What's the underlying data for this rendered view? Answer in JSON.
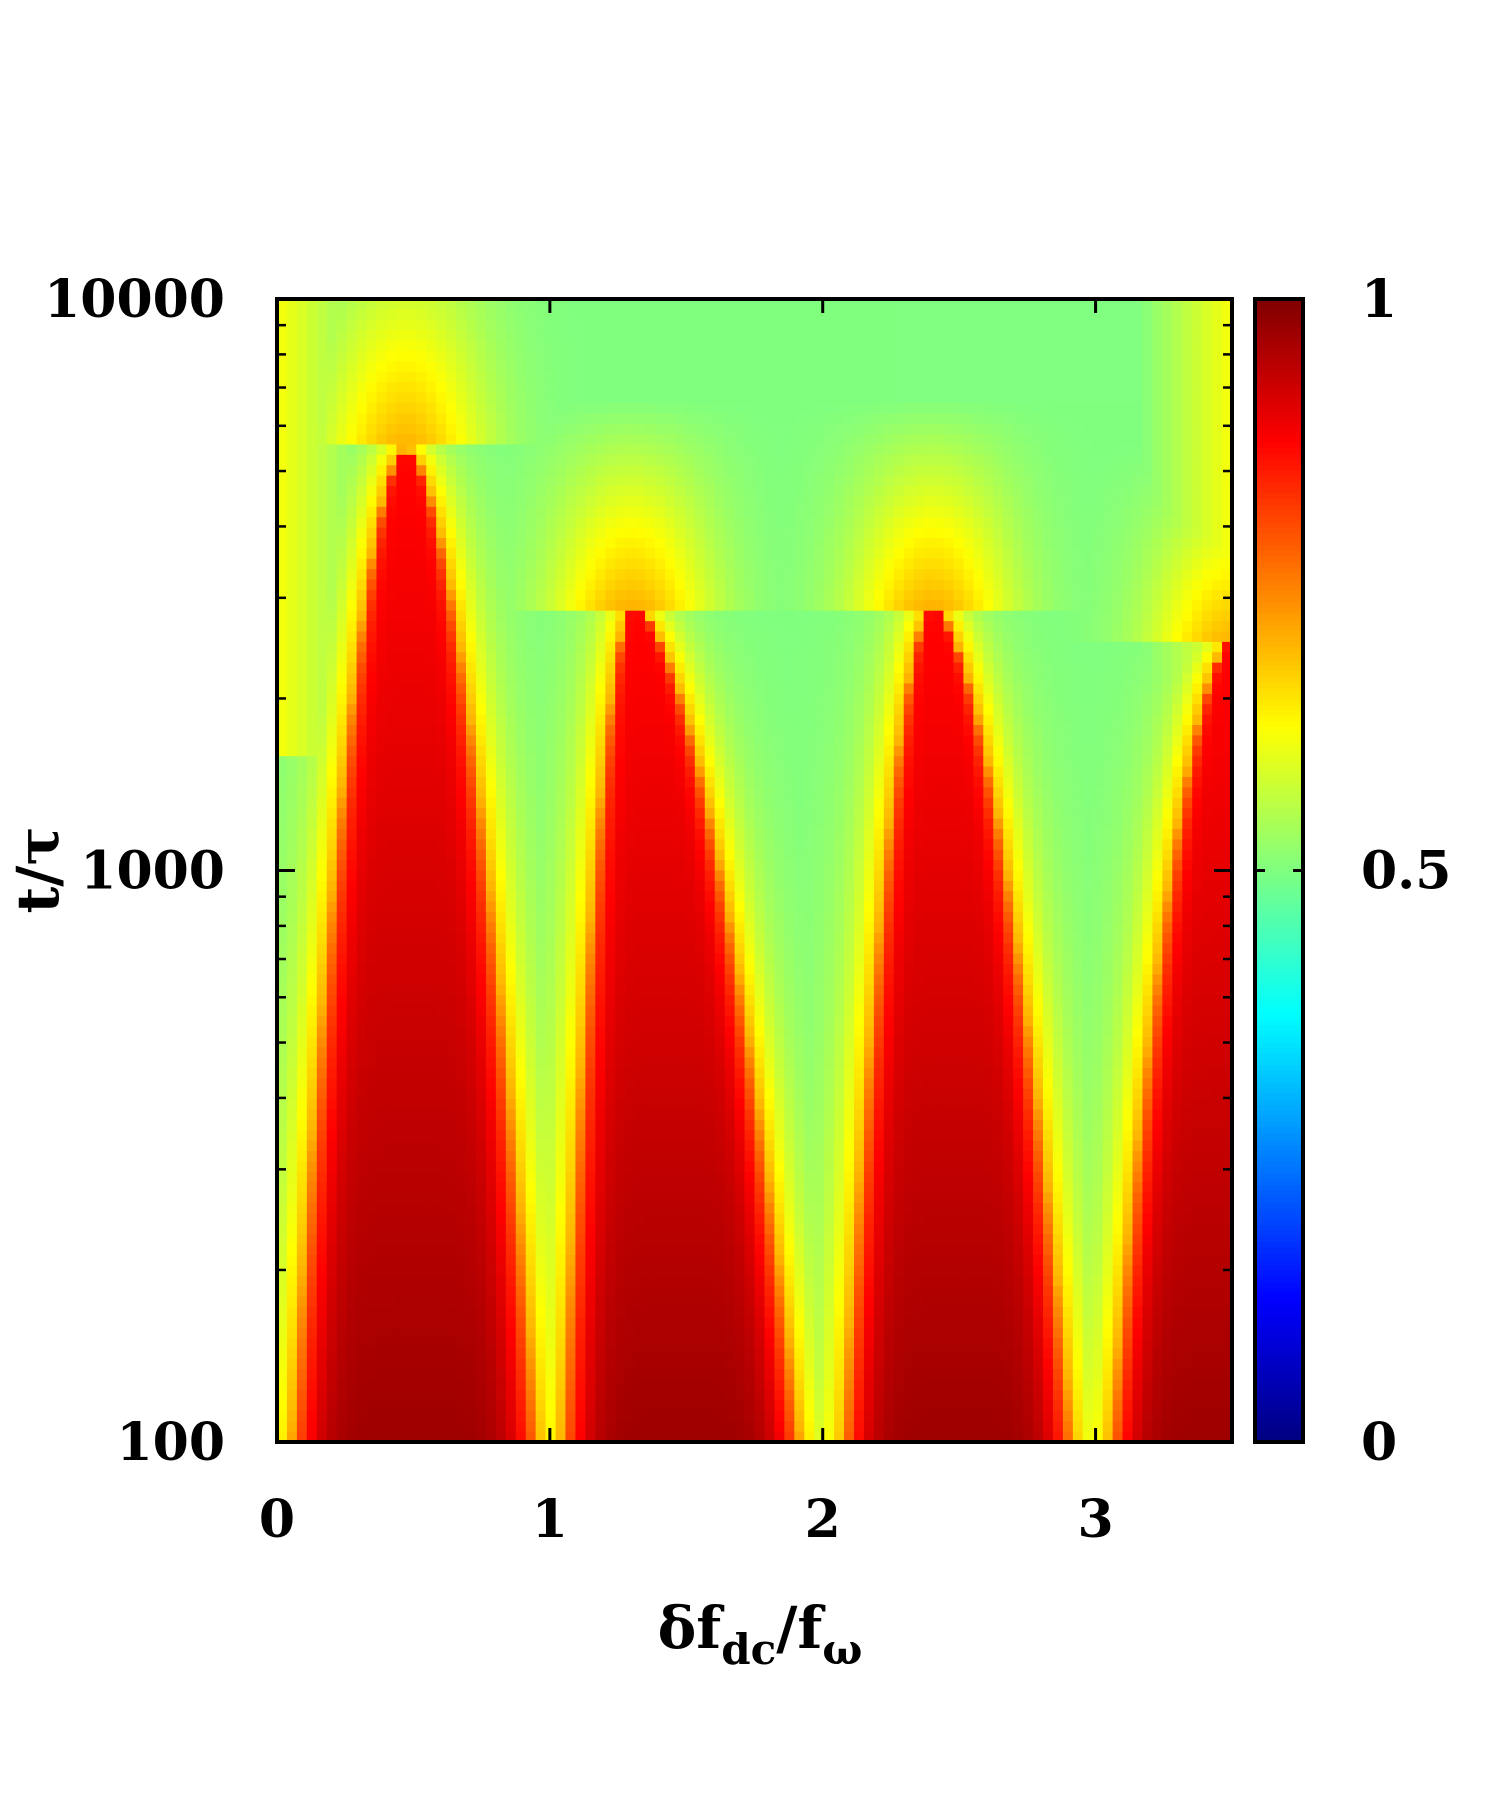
{
  "chart_data": {
    "type": "heatmap",
    "title": "",
    "xlabel": {
      "base": "δf",
      "sub": "dc",
      "mid": "/f",
      "sub2": "ω"
    },
    "ylabel": "t/τ",
    "x_range": [
      0,
      3.5
    ],
    "y_range": [
      100,
      10000
    ],
    "y_scale": "log",
    "x_ticks": [
      {
        "value": 0,
        "label": "0"
      },
      {
        "value": 1,
        "label": "1"
      },
      {
        "value": 2,
        "label": "2"
      },
      {
        "value": 3,
        "label": "3"
      }
    ],
    "y_ticks": [
      {
        "value": 100,
        "label": "100"
      },
      {
        "value": 1000,
        "label": "1000"
      },
      {
        "value": 10000,
        "label": "10000"
      }
    ],
    "colorbar": {
      "range": [
        0,
        1
      ],
      "ticks": [
        {
          "value": 0,
          "label": "0"
        },
        {
          "value": 0.5,
          "label": "0.5"
        },
        {
          "value": 1,
          "label": "1"
        }
      ],
      "colormap": [
        "#00007f",
        "#0000ff",
        "#007fff",
        "#00ffff",
        "#7fff7f",
        "#ffff00",
        "#ff7f00",
        "#ff0000",
        "#7f0000"
      ]
    },
    "description_values": {
      "resonance_x": [
        1,
        2,
        3
      ],
      "plateau_value": 0.5,
      "peak_value": 0.97
    }
  }
}
